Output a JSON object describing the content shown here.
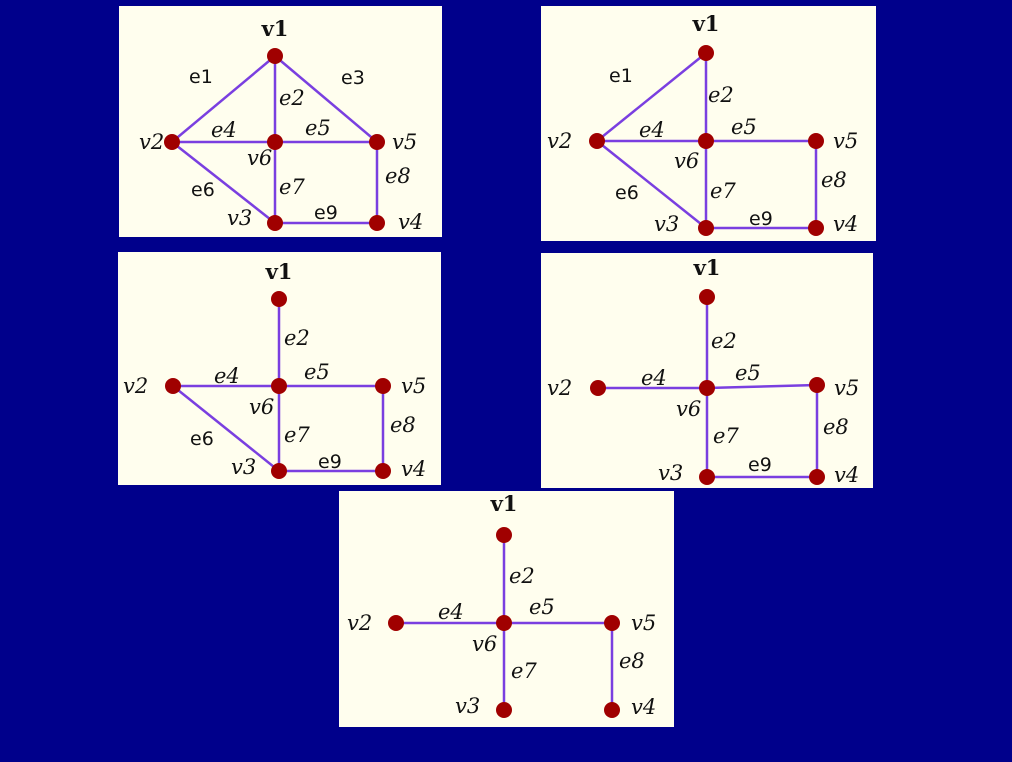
{
  "panels": [
    {
      "vertices": [
        {
          "id": "v1",
          "label": "v1"
        },
        {
          "id": "v2",
          "label": "v2"
        },
        {
          "id": "v3",
          "label": "v3"
        },
        {
          "id": "v4",
          "label": "v4"
        },
        {
          "id": "v5",
          "label": "v5"
        },
        {
          "id": "v6",
          "label": "v6"
        }
      ],
      "edges": [
        {
          "from": "v1",
          "to": "v2",
          "label": "e1"
        },
        {
          "from": "v1",
          "to": "v6",
          "label": "e2"
        },
        {
          "from": "v1",
          "to": "v5",
          "label": "e3"
        },
        {
          "from": "v2",
          "to": "v6",
          "label": "e4"
        },
        {
          "from": "v6",
          "to": "v5",
          "label": "e5"
        },
        {
          "from": "v2",
          "to": "v3",
          "label": "e6"
        },
        {
          "from": "v6",
          "to": "v3",
          "label": "e7"
        },
        {
          "from": "v5",
          "to": "v4",
          "label": "e8"
        },
        {
          "from": "v3",
          "to": "v4",
          "label": "e9"
        }
      ]
    },
    {
      "vertices": [
        {
          "id": "v1",
          "label": "v1"
        },
        {
          "id": "v2",
          "label": "v2"
        },
        {
          "id": "v3",
          "label": "v3"
        },
        {
          "id": "v4",
          "label": "v4"
        },
        {
          "id": "v5",
          "label": "v5"
        },
        {
          "id": "v6",
          "label": "v6"
        }
      ],
      "edges": [
        {
          "from": "v1",
          "to": "v2",
          "label": "e1"
        },
        {
          "from": "v1",
          "to": "v6",
          "label": "e2"
        },
        {
          "from": "v2",
          "to": "v6",
          "label": "e4"
        },
        {
          "from": "v6",
          "to": "v5",
          "label": "e5"
        },
        {
          "from": "v2",
          "to": "v3",
          "label": "e6"
        },
        {
          "from": "v6",
          "to": "v3",
          "label": "e7"
        },
        {
          "from": "v5",
          "to": "v4",
          "label": "e8"
        },
        {
          "from": "v3",
          "to": "v4",
          "label": "e9"
        }
      ]
    },
    {
      "vertices": [
        {
          "id": "v1",
          "label": "v1"
        },
        {
          "id": "v2",
          "label": "v2"
        },
        {
          "id": "v3",
          "label": "v3"
        },
        {
          "id": "v4",
          "label": "v4"
        },
        {
          "id": "v5",
          "label": "v5"
        },
        {
          "id": "v6",
          "label": "v6"
        }
      ],
      "edges": [
        {
          "from": "v1",
          "to": "v6",
          "label": "e2"
        },
        {
          "from": "v2",
          "to": "v6",
          "label": "e4"
        },
        {
          "from": "v6",
          "to": "v5",
          "label": "e5"
        },
        {
          "from": "v2",
          "to": "v3",
          "label": "e6"
        },
        {
          "from": "v6",
          "to": "v3",
          "label": "e7"
        },
        {
          "from": "v5",
          "to": "v4",
          "label": "e8"
        },
        {
          "from": "v3",
          "to": "v4",
          "label": "e9"
        }
      ]
    },
    {
      "vertices": [
        {
          "id": "v1",
          "label": "v1"
        },
        {
          "id": "v2",
          "label": "v2"
        },
        {
          "id": "v3",
          "label": "v3"
        },
        {
          "id": "v4",
          "label": "v4"
        },
        {
          "id": "v5",
          "label": "v5"
        },
        {
          "id": "v6",
          "label": "v6"
        }
      ],
      "edges": [
        {
          "from": "v1",
          "to": "v6",
          "label": "e2"
        },
        {
          "from": "v2",
          "to": "v6",
          "label": "e4"
        },
        {
          "from": "v6",
          "to": "v5",
          "label": "e5"
        },
        {
          "from": "v6",
          "to": "v3",
          "label": "e7"
        },
        {
          "from": "v5",
          "to": "v4",
          "label": "e8"
        },
        {
          "from": "v3",
          "to": "v4",
          "label": "e9"
        }
      ]
    },
    {
      "vertices": [
        {
          "id": "v1",
          "label": "v1"
        },
        {
          "id": "v2",
          "label": "v2"
        },
        {
          "id": "v3",
          "label": "v3"
        },
        {
          "id": "v4",
          "label": "v4"
        },
        {
          "id": "v5",
          "label": "v5"
        },
        {
          "id": "v6",
          "label": "v6"
        }
      ],
      "edges": [
        {
          "from": "v1",
          "to": "v6",
          "label": "e2"
        },
        {
          "from": "v2",
          "to": "v6",
          "label": "e4"
        },
        {
          "from": "v6",
          "to": "v5",
          "label": "e5"
        },
        {
          "from": "v6",
          "to": "v3",
          "label": "e7"
        },
        {
          "from": "v5",
          "to": "v4",
          "label": "e8"
        }
      ]
    }
  ]
}
